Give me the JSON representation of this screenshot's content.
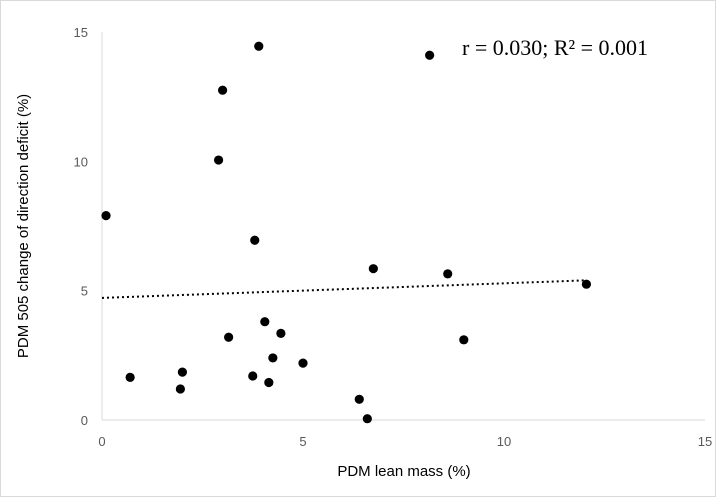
{
  "chart_data": {
    "type": "scatter",
    "title": "",
    "xlabel": "PDM lean mass (%)",
    "ylabel": "PDM 505 change of direction deficit (%)",
    "xlim": [
      0,
      15
    ],
    "ylim": [
      0,
      15
    ],
    "xticks": [
      "0",
      "5",
      "10",
      "15"
    ],
    "yticks": [
      "0",
      "5",
      "10",
      "15"
    ],
    "grid": false,
    "annotation": "r = 0.030; R² = 0.001",
    "points": [
      {
        "x": 0.1,
        "y": 7.9
      },
      {
        "x": 0.7,
        "y": 1.65
      },
      {
        "x": 2.0,
        "y": 1.85
      },
      {
        "x": 1.95,
        "y": 1.2
      },
      {
        "x": 2.9,
        "y": 10.05
      },
      {
        "x": 3.0,
        "y": 12.75
      },
      {
        "x": 3.15,
        "y": 3.2
      },
      {
        "x": 3.8,
        "y": 6.95
      },
      {
        "x": 3.9,
        "y": 14.45
      },
      {
        "x": 3.75,
        "y": 1.7
      },
      {
        "x": 4.05,
        "y": 3.8
      },
      {
        "x": 4.15,
        "y": 1.45
      },
      {
        "x": 4.25,
        "y": 2.4
      },
      {
        "x": 4.45,
        "y": 3.35
      },
      {
        "x": 5.0,
        "y": 2.2
      },
      {
        "x": 6.4,
        "y": 0.8
      },
      {
        "x": 6.6,
        "y": 0.05
      },
      {
        "x": 6.75,
        "y": 5.85
      },
      {
        "x": 8.15,
        "y": 14.1
      },
      {
        "x": 8.6,
        "y": 5.65
      },
      {
        "x": 9.0,
        "y": 3.1
      },
      {
        "x": 12.05,
        "y": 5.25
      }
    ],
    "trendline": {
      "x": [
        0,
        12.05
      ],
      "y": [
        4.72,
        5.4
      ],
      "style": "dotted"
    }
  }
}
